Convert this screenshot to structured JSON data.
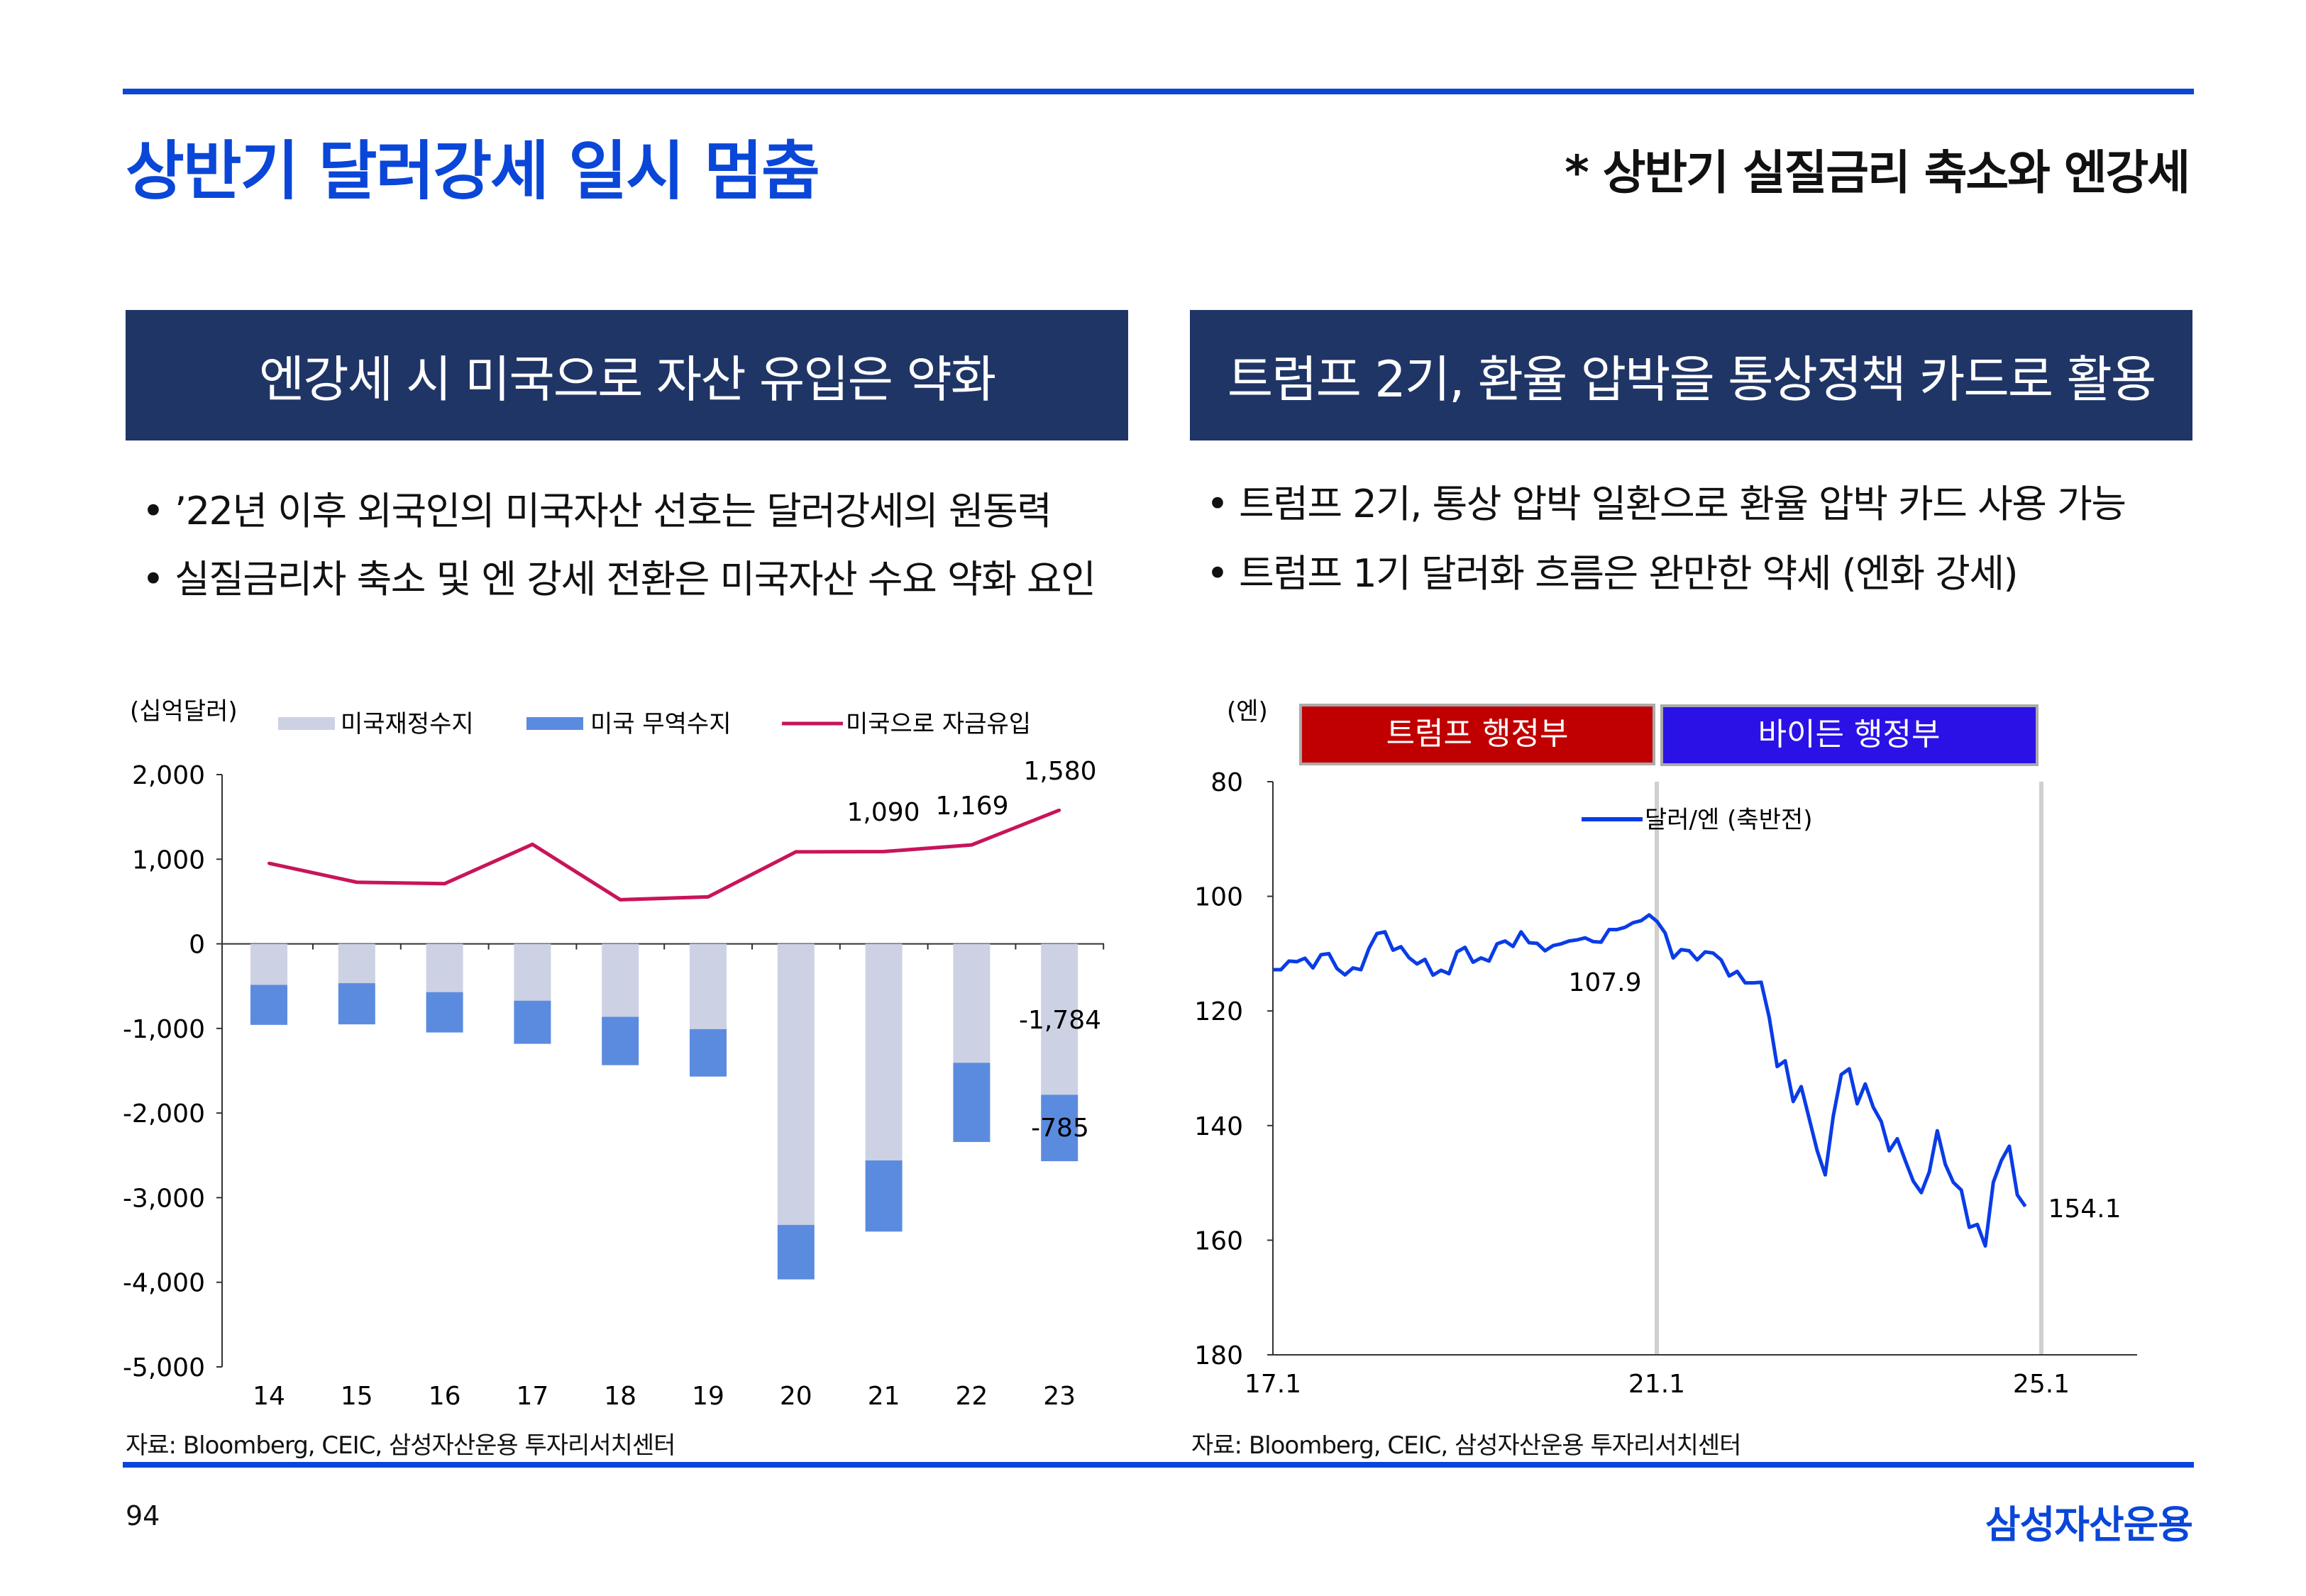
{
  "header": {
    "title": "상반기 달러강세 일시 멈춤",
    "subtitle": "* 상반기 실질금리 축소와 엔강세"
  },
  "left_panel": {
    "heading": "엔강세 시 미국으로 자산 유입은 약화",
    "bullets": [
      "’22년 이후 외국인의 미국자산 선호는 달러강세의 원동력",
      "실질금리차 축소 및 엔 강세 전환은 미국자산 수요 약화 요인"
    ],
    "source": "자료: Bloomberg, CEIC, 삼성자산운용 투자리서치센터"
  },
  "right_panel": {
    "heading": "트럼프 2기, 환율 압박을 통상정책 카드로 활용",
    "bullets": [
      "트럼프 2기, 통상 압박 일환으로 환율 압박 카드 사용 가능",
      "트럼프 1기 달러화 흐름은 완만한 약세 (엔화 강세)"
    ],
    "source": "자료: Bloomberg, CEIC, 삼성자산운용 투자리서치센터"
  },
  "footer": {
    "page": "94",
    "logo": "삼성자산운용"
  },
  "colors": {
    "accent": "#0a46d8",
    "panel": "#1f3566",
    "fiscal": "#cdd1e4",
    "trade": "#5b8bdf",
    "inflow": "#c8145a",
    "usdjpy": "#0a3ce6",
    "trump": "#c00000",
    "biden": "#2a12e6"
  },
  "chart_data": [
    {
      "type": "bar",
      "stacked": true,
      "unit_label": "(십억달러)",
      "categories": [
        "14",
        "15",
        "16",
        "17",
        "18",
        "19",
        "20",
        "21",
        "22",
        "23"
      ],
      "ylim": [
        -5000,
        2000
      ],
      "yticks": [
        "2,000",
        "1,000",
        "0",
        "-1,000",
        "-2,000",
        "-3,000",
        "-4,000",
        "-5,000"
      ],
      "ytick_values": [
        2000,
        1000,
        0,
        -1000,
        -2000,
        -3000,
        -4000,
        -5000
      ],
      "legend_position": "top",
      "series": [
        {
          "name": "미국재정수지",
          "type": "bar",
          "values": [
            -485,
            -465,
            -571,
            -672,
            -863,
            -1008,
            -3322,
            -2560,
            -1406,
            -1784
          ]
        },
        {
          "name": "미국 무역수지",
          "type": "bar",
          "values": [
            -473,
            -487,
            -477,
            -510,
            -571,
            -561,
            -644,
            -841,
            -936,
            -785
          ]
        },
        {
          "name": "미국으로 자금유입",
          "type": "line",
          "values": [
            952,
            728,
            711,
            1176,
            521,
            555,
            1087,
            1090,
            1169,
            1580
          ]
        }
      ],
      "annotations": [
        "1,090",
        "1,169",
        "1,580",
        "-1,784",
        "-785"
      ]
    },
    {
      "type": "line",
      "unit_label": "(엔)",
      "ylim": [
        80,
        180
      ],
      "y_reversed": true,
      "yticks": [
        "80",
        "100",
        "120",
        "140",
        "160",
        "180"
      ],
      "ytick_values": [
        80,
        100,
        120,
        140,
        160,
        180
      ],
      "xticks": [
        "17.1",
        "21.1",
        "25.1"
      ],
      "legend_position": "top-center",
      "periods": [
        "트럼프 행정부",
        "바이든 행정부"
      ],
      "series": [
        {
          "name": "달러/엔 (축반전)",
          "values": [
            112.8,
            112.8,
            111.3,
            111.4,
            110.8,
            112.5,
            110.2,
            110.0,
            112.6,
            113.7,
            112.5,
            112.8,
            109.1,
            106.5,
            106.2,
            109.4,
            108.8,
            110.7,
            111.8,
            111.0,
            113.75,
            112.9,
            113.5,
            109.7,
            108.9,
            111.5,
            110.75,
            111.3,
            108.3,
            107.8,
            108.75,
            106.2,
            108.1,
            108.2,
            109.5,
            108.6,
            108.3,
            107.8,
            107.6,
            107.25,
            107.9,
            108.0,
            105.8,
            105.8,
            105.4,
            104.6,
            104.25,
            103.25,
            104.4,
            106.4,
            110.75,
            109.3,
            109.5,
            111.1,
            109.7,
            109.9,
            111.1,
            113.9,
            113.1,
            115.1,
            115.1,
            115.0,
            121.1,
            129.7,
            128.7,
            135.8,
            133.2,
            138.8,
            144.4,
            148.6,
            138.4,
            131.1,
            130.1,
            136.2,
            132.75,
            136.8,
            139.3,
            144.4,
            142.3,
            146.1,
            149.7,
            151.7,
            148.1,
            140.9,
            146.75,
            149.9,
            151.25,
            157.75,
            157.25,
            161.0,
            149.9,
            146.1,
            143.6,
            152.1,
            154.1
          ]
        }
      ],
      "annotations": [
        "107.9",
        "154.1"
      ]
    }
  ]
}
